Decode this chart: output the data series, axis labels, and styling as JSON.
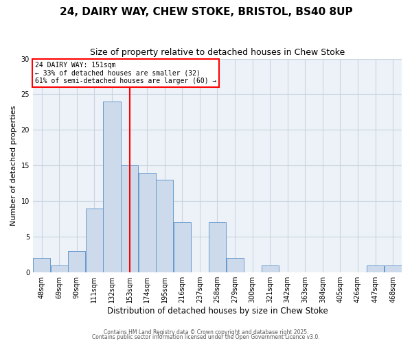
{
  "title": "24, DAIRY WAY, CHEW STOKE, BRISTOL, BS40 8UP",
  "subtitle": "Size of property relative to detached houses in Chew Stoke",
  "xlabel": "Distribution of detached houses by size in Chew Stoke",
  "ylabel": "Number of detached properties",
  "bar_color": "#ccdaeb",
  "bar_edgecolor": "#6699cc",
  "grid_color": "#c8d4e0",
  "bg_color": "#edf2f8",
  "ref_line_x": 153,
  "ref_line_color": "red",
  "annotation_title": "24 DAIRY WAY: 151sqm",
  "annotation_line1": "← 33% of detached houses are smaller (32)",
  "annotation_line2": "61% of semi-detached houses are larger (60) →",
  "bin_centers": [
    48,
    69,
    90,
    111,
    132,
    153,
    174,
    195,
    216,
    237,
    258,
    279,
    300,
    321,
    342,
    363,
    384,
    405,
    426,
    447,
    468
  ],
  "counts": [
    2,
    1,
    3,
    9,
    24,
    15,
    14,
    13,
    7,
    0,
    7,
    2,
    0,
    1,
    0,
    0,
    0,
    0,
    0,
    1,
    1
  ],
  "tick_labels": [
    "48sqm",
    "69sqm",
    "90sqm",
    "111sqm",
    "132sqm",
    "153sqm",
    "174sqm",
    "195sqm",
    "216sqm",
    "237sqm",
    "258sqm",
    "279sqm",
    "300sqm",
    "321sqm",
    "342sqm",
    "363sqm",
    "384sqm",
    "405sqm",
    "426sqm",
    "447sqm",
    "468sqm"
  ],
  "ylim": [
    0,
    30
  ],
  "yticks": [
    0,
    5,
    10,
    15,
    20,
    25,
    30
  ],
  "bin_width": 21,
  "footer1": "Contains HM Land Registry data © Crown copyright and database right 2025.",
  "footer2": "Contains public sector information licensed under the Open Government Licence v3.0."
}
